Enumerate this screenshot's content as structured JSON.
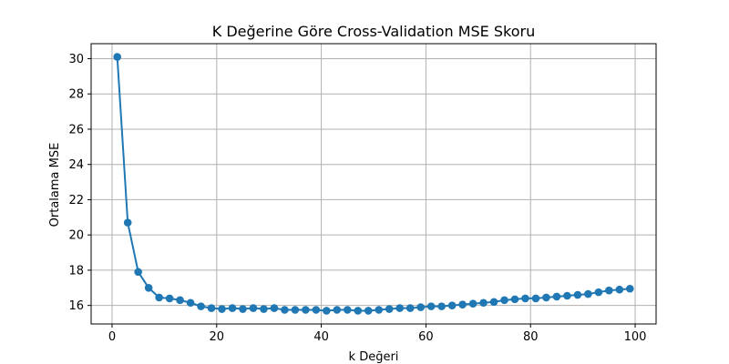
{
  "chart_data": {
    "type": "line",
    "title": "K Değerine Göre Cross-Validation MSE Skoru",
    "xlabel": "k Değeri",
    "ylabel": "Ortalama MSE",
    "xlim": [
      -4,
      104
    ],
    "ylim": [
      14.95,
      30.85
    ],
    "xticks": [
      0,
      20,
      40,
      60,
      80,
      100
    ],
    "yticks": [
      16,
      18,
      20,
      22,
      24,
      26,
      28,
      30
    ],
    "grid": true,
    "series": [
      {
        "color": "#1f77b4",
        "marker": "circle",
        "x": [
          1,
          3,
          5,
          7,
          9,
          11,
          13,
          15,
          17,
          19,
          21,
          23,
          25,
          27,
          29,
          31,
          33,
          35,
          37,
          39,
          41,
          43,
          45,
          47,
          49,
          51,
          53,
          55,
          57,
          59,
          61,
          63,
          65,
          67,
          69,
          71,
          73,
          75,
          77,
          79,
          81,
          83,
          85,
          87,
          89,
          91,
          93,
          95,
          97,
          99
        ],
        "y": [
          30.1,
          20.7,
          17.9,
          17.0,
          16.45,
          16.4,
          16.3,
          16.15,
          15.95,
          15.85,
          15.8,
          15.85,
          15.8,
          15.85,
          15.8,
          15.85,
          15.75,
          15.75,
          15.75,
          15.75,
          15.7,
          15.75,
          15.75,
          15.7,
          15.7,
          15.75,
          15.8,
          15.85,
          15.85,
          15.9,
          15.95,
          15.95,
          16.0,
          16.05,
          16.1,
          16.15,
          16.2,
          16.3,
          16.35,
          16.4,
          16.4,
          16.45,
          16.5,
          16.55,
          16.6,
          16.65,
          16.75,
          16.85,
          16.9,
          16.95
        ]
      }
    ]
  }
}
